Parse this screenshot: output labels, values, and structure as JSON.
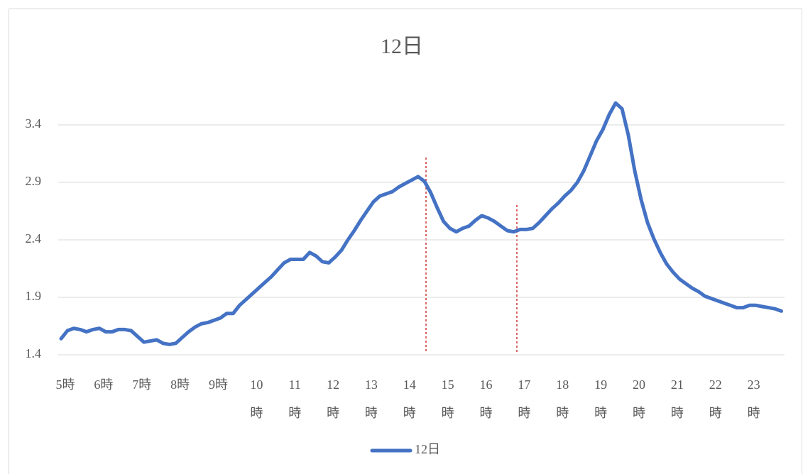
{
  "chart_data": {
    "type": "line",
    "title": "12日",
    "categories": [
      "5時",
      null,
      null,
      null,
      null,
      null,
      "6時",
      null,
      null,
      null,
      null,
      null,
      "7時",
      null,
      null,
      null,
      null,
      null,
      "8時",
      null,
      null,
      null,
      null,
      null,
      "9時",
      null,
      null,
      null,
      null,
      null,
      "10時",
      null,
      null,
      null,
      null,
      null,
      "11時",
      null,
      null,
      null,
      null,
      null,
      "12時",
      null,
      null,
      null,
      null,
      null,
      "13時",
      null,
      null,
      null,
      null,
      null,
      "14時",
      null,
      null,
      null,
      null,
      null,
      "15時",
      null,
      null,
      null,
      null,
      null,
      "16時",
      null,
      null,
      null,
      null,
      null,
      "17時",
      null,
      null,
      null,
      null,
      null,
      "18時",
      null,
      null,
      null,
      null,
      null,
      "19時",
      null,
      null,
      null,
      null,
      null,
      "20時",
      null,
      null,
      null,
      null,
      null,
      "21時",
      null,
      null,
      null,
      null,
      null,
      "22時",
      null,
      null,
      null,
      null,
      null,
      "23時",
      null,
      null,
      null,
      null,
      null
    ],
    "series": [
      {
        "name": "12日",
        "color": "#4472c4",
        "values": [
          1.54,
          1.61,
          1.63,
          1.62,
          1.6,
          1.62,
          1.63,
          1.6,
          1.6,
          1.62,
          1.62,
          1.61,
          1.56,
          1.51,
          1.52,
          1.53,
          1.5,
          1.49,
          1.5,
          1.55,
          1.6,
          1.64,
          1.67,
          1.68,
          1.7,
          1.72,
          1.76,
          1.76,
          1.83,
          1.88,
          1.93,
          1.98,
          2.03,
          2.08,
          2.14,
          2.2,
          2.23,
          2.23,
          2.23,
          2.29,
          2.26,
          2.21,
          2.2,
          2.25,
          2.31,
          2.4,
          2.48,
          2.57,
          2.65,
          2.73,
          2.78,
          2.8,
          2.82,
          2.86,
          2.89,
          2.92,
          2.95,
          2.91,
          2.81,
          2.68,
          2.56,
          2.5,
          2.47,
          2.5,
          2.52,
          2.57,
          2.61,
          2.59,
          2.56,
          2.52,
          2.48,
          2.47,
          2.49,
          2.49,
          2.5,
          2.55,
          2.61,
          2.67,
          2.72,
          2.78,
          2.83,
          2.9,
          3.0,
          3.13,
          3.26,
          3.36,
          3.49,
          3.59,
          3.54,
          3.31,
          3.0,
          2.75,
          2.55,
          2.41,
          2.29,
          2.19,
          2.12,
          2.06,
          2.02,
          1.98,
          1.95,
          1.91,
          1.89,
          1.87,
          1.85,
          1.83,
          1.81,
          1.81,
          1.83,
          1.83,
          1.82,
          1.81,
          1.8,
          1.78
        ]
      }
    ],
    "ylim": [
      1.4,
      3.65
    ],
    "yticks": [
      1.4,
      1.9,
      2.4,
      2.9,
      3.4
    ],
    "grid": true,
    "legend": "bottom"
  }
}
